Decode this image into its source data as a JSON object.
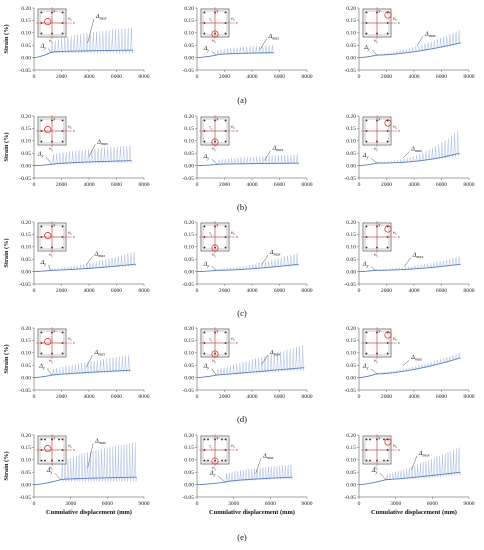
{
  "figure": {
    "row_labels": [
      "(a)",
      "(b)",
      "(c)",
      "(d)",
      "(e)"
    ],
    "x_axis_title": "Cumulative displacement (mm)",
    "y_axis_title": "Strain (%)"
  },
  "annotations": {
    "delta_y": "Δ",
    "delta_y_sub": "y",
    "delta_max": "Δ",
    "delta_max_sub": "max"
  },
  "inset_labels": {
    "hx": "H",
    "hx_sub": "x",
    "hy": "H",
    "hy_sub": "y",
    "y": "y",
    "x": "x",
    "t": "T",
    "t_sub": "y"
  },
  "colors": {
    "series": "#5b7fbf",
    "series_light": "#9db3dc",
    "marker": "#d42020",
    "axis": "#444444"
  },
  "chart_data": [
    {
      "panel": "a-1",
      "type": "line",
      "x_range": [
        0,
        8000
      ],
      "ylim": [
        -0.05,
        0.2
      ],
      "x_ticks": [
        0,
        2000,
        4000,
        6000,
        8000
      ],
      "y_ticks": [
        -0.05,
        0.0,
        0.05,
        0.1,
        0.15,
        0.2
      ],
      "yield_at": [
        1200,
        0.02
      ],
      "end_x": 7200,
      "base_end": 0.03,
      "peak_start": 0.04,
      "peak_end": 0.12,
      "rise": 0.4,
      "delta_y_pos": [
        700,
        0.04
      ],
      "delta_max_pos": [
        4500,
        0.16
      ]
    },
    {
      "panel": "a-2",
      "type": "line",
      "x_range": [
        0,
        8000
      ],
      "ylim": [
        -0.05,
        0.2
      ],
      "x_ticks": [
        0,
        2000,
        4000,
        6000,
        8000
      ],
      "y_ticks": [
        -0.05,
        0.0,
        0.05,
        0.1,
        0.15,
        0.2
      ],
      "yield_at": [
        1400,
        0.01
      ],
      "end_x": 5600,
      "base_end": 0.02,
      "peak_start": 0.02,
      "peak_end": 0.05,
      "rise": 0.4,
      "delta_y_pos": [
        700,
        0.03
      ],
      "delta_max_pos": [
        5200,
        0.08
      ]
    },
    {
      "panel": "a-3",
      "type": "line",
      "x_range": [
        0,
        8000
      ],
      "ylim": [
        -0.05,
        0.2
      ],
      "x_ticks": [
        0,
        2000,
        4000,
        6000,
        8000
      ],
      "y_ticks": [
        -0.05,
        0.0,
        0.05,
        0.1,
        0.15,
        0.2
      ],
      "yield_at": [
        1300,
        0.01
      ],
      "end_x": 7400,
      "base_end": 0.06,
      "peak_start": 0.015,
      "peak_end": 0.11,
      "rise": 1.6,
      "delta_y_pos": [
        600,
        0.035
      ],
      "delta_max_pos": [
        4800,
        0.09
      ]
    },
    {
      "panel": "b-1",
      "type": "line",
      "x_range": [
        0,
        8000
      ],
      "ylim": [
        -0.05,
        0.2
      ],
      "x_ticks": [
        0,
        2000,
        4000,
        6000,
        8000
      ],
      "y_ticks": [
        -0.05,
        0.0,
        0.05,
        0.1,
        0.15,
        0.2
      ],
      "yield_at": [
        1300,
        0.005
      ],
      "end_x": 7100,
      "base_end": 0.02,
      "peak_start": 0.04,
      "peak_end": 0.08,
      "rise": 0.6,
      "delta_y_pos": [
        500,
        0.04
      ],
      "delta_max_pos": [
        4600,
        0.09
      ]
    },
    {
      "panel": "b-2",
      "type": "line",
      "x_range": [
        0,
        8000
      ],
      "ylim": [
        -0.05,
        0.2
      ],
      "x_ticks": [
        0,
        2000,
        4000,
        6000,
        8000
      ],
      "y_ticks": [
        -0.05,
        0.0,
        0.05,
        0.1,
        0.15,
        0.2
      ],
      "yield_at": [
        1500,
        0.005
      ],
      "end_x": 7400,
      "base_end": 0.01,
      "peak_start": 0.02,
      "peak_end": 0.045,
      "rise": 0.6,
      "delta_y_pos": [
        700,
        0.03
      ],
      "delta_max_pos": [
        5500,
        0.065
      ]
    },
    {
      "panel": "b-3",
      "type": "line",
      "x_range": [
        0,
        8000
      ],
      "ylim": [
        -0.05,
        0.2
      ],
      "x_ticks": [
        0,
        2000,
        4000,
        6000,
        8000
      ],
      "y_ticks": [
        -0.05,
        0.0,
        0.05,
        0.1,
        0.15,
        0.2
      ],
      "yield_at": [
        1300,
        0.01
      ],
      "end_x": 7300,
      "base_end": 0.05,
      "peak_start": 0.015,
      "peak_end": 0.14,
      "rise": 2.2,
      "delta_y_pos": [
        500,
        0.035
      ],
      "delta_max_pos": [
        3800,
        0.06
      ]
    },
    {
      "panel": "c-1",
      "type": "line",
      "x_range": [
        0,
        8000
      ],
      "ylim": [
        -0.05,
        0.2
      ],
      "x_ticks": [
        0,
        2000,
        4000,
        6000,
        8000
      ],
      "y_ticks": [
        -0.05,
        0.0,
        0.05,
        0.1,
        0.15,
        0.2
      ],
      "yield_at": [
        1200,
        0.005
      ],
      "end_x": 7400,
      "base_end": 0.03,
      "peak_start": 0.01,
      "peak_end": 0.08,
      "rise": 1.4,
      "delta_y_pos": [
        700,
        0.03
      ],
      "delta_max_pos": [
        4400,
        0.065
      ]
    },
    {
      "panel": "c-2",
      "type": "line",
      "x_range": [
        0,
        8000
      ],
      "ylim": [
        -0.05,
        0.2
      ],
      "x_ticks": [
        0,
        2000,
        4000,
        6000,
        8000
      ],
      "y_ticks": [
        -0.05,
        0.0,
        0.05,
        0.1,
        0.15,
        0.2
      ],
      "yield_at": [
        1400,
        0.005
      ],
      "end_x": 7400,
      "base_end": 0.03,
      "peak_start": 0.01,
      "peak_end": 0.075,
      "rise": 1.6,
      "delta_y_pos": [
        700,
        0.025
      ],
      "delta_max_pos": [
        5300,
        0.07
      ]
    },
    {
      "panel": "c-3",
      "type": "line",
      "x_range": [
        0,
        8000
      ],
      "ylim": [
        -0.05,
        0.2
      ],
      "x_ticks": [
        0,
        2000,
        4000,
        6000,
        8000
      ],
      "y_ticks": [
        -0.05,
        0.0,
        0.05,
        0.1,
        0.15,
        0.2
      ],
      "yield_at": [
        1200,
        0.005
      ],
      "end_x": 7400,
      "base_end": 0.03,
      "peak_start": 0.01,
      "peak_end": 0.06,
      "rise": 1.8,
      "delta_y_pos": [
        500,
        0.025
      ],
      "delta_max_pos": [
        3900,
        0.06
      ]
    },
    {
      "panel": "d-1",
      "type": "line",
      "x_range": [
        0,
        8000
      ],
      "ylim": [
        -0.05,
        0.2
      ],
      "x_ticks": [
        0,
        2000,
        4000,
        6000,
        8000
      ],
      "y_ticks": [
        -0.05,
        0.0,
        0.05,
        0.1,
        0.15,
        0.2
      ],
      "yield_at": [
        1300,
        0.01
      ],
      "end_x": 7000,
      "base_end": 0.03,
      "peak_start": 0.03,
      "peak_end": 0.09,
      "rise": 0.8,
      "delta_y_pos": [
        600,
        0.04
      ],
      "delta_max_pos": [
        4400,
        0.095
      ]
    },
    {
      "panel": "d-2",
      "type": "line",
      "x_range": [
        0,
        8000
      ],
      "ylim": [
        -0.05,
        0.2
      ],
      "x_ticks": [
        0,
        2000,
        4000,
        6000,
        8000
      ],
      "y_ticks": [
        -0.05,
        0.0,
        0.05,
        0.1,
        0.15,
        0.2
      ],
      "yield_at": [
        1400,
        0.01
      ],
      "end_x": 7800,
      "base_end": 0.04,
      "peak_start": 0.03,
      "peak_end": 0.13,
      "rise": 1.0,
      "delta_y_pos": [
        700,
        0.04
      ],
      "delta_max_pos": [
        5300,
        0.095
      ]
    },
    {
      "panel": "d-3",
      "type": "line",
      "x_range": [
        0,
        8000
      ],
      "ylim": [
        -0.05,
        0.2
      ],
      "x_ticks": [
        0,
        2000,
        4000,
        6000,
        8000
      ],
      "y_ticks": [
        -0.05,
        0.0,
        0.05,
        0.1,
        0.15,
        0.2
      ],
      "yield_at": [
        1300,
        0.015
      ],
      "end_x": 7400,
      "base_end": 0.08,
      "peak_start": 0.02,
      "peak_end": 0.1,
      "rise": 1.6,
      "delta_y_pos": [
        500,
        0.04
      ],
      "delta_max_pos": [
        3800,
        0.075
      ]
    },
    {
      "panel": "e-1",
      "type": "line",
      "x_range": [
        0,
        9000
      ],
      "ylim": [
        -0.05,
        0.2
      ],
      "x_ticks": [
        0,
        3000,
        6000,
        9000
      ],
      "y_ticks": [
        -0.05,
        0.0,
        0.05,
        0.1,
        0.15,
        0.2
      ],
      "yield_at": [
        2200,
        0.02
      ],
      "end_x": 8400,
      "base_end": 0.03,
      "peak_start": 0.08,
      "peak_end": 0.17,
      "rise": 0.6,
      "delta_y_pos": [
        1300,
        0.05
      ],
      "delta_max_pos": [
        5000,
        0.17
      ]
    },
    {
      "panel": "e-2",
      "type": "line",
      "x_range": [
        0,
        9000
      ],
      "ylim": [
        -0.05,
        0.2
      ],
      "x_ticks": [
        0,
        3000,
        6000,
        9000
      ],
      "y_ticks": [
        -0.05,
        0.0,
        0.05,
        0.1,
        0.15,
        0.2
      ],
      "yield_at": [
        2300,
        0.01
      ],
      "end_x": 7800,
      "base_end": 0.03,
      "peak_start": 0.04,
      "peak_end": 0.08,
      "rise": 0.6,
      "delta_y_pos": [
        1300,
        0.04
      ],
      "delta_max_pos": [
        5400,
        0.11
      ]
    },
    {
      "panel": "e-3",
      "type": "line",
      "x_range": [
        0,
        9000
      ],
      "ylim": [
        -0.05,
        0.2
      ],
      "x_ticks": [
        0,
        3000,
        6000,
        9000
      ],
      "y_ticks": [
        -0.05,
        0.0,
        0.05,
        0.1,
        0.15,
        0.2
      ],
      "yield_at": [
        2200,
        0.02
      ],
      "end_x": 8300,
      "base_end": 0.05,
      "peak_start": 0.04,
      "peak_end": 0.15,
      "rise": 1.2,
      "delta_y_pos": [
        1300,
        0.05
      ],
      "delta_max_pos": [
        4900,
        0.12
      ]
    }
  ]
}
